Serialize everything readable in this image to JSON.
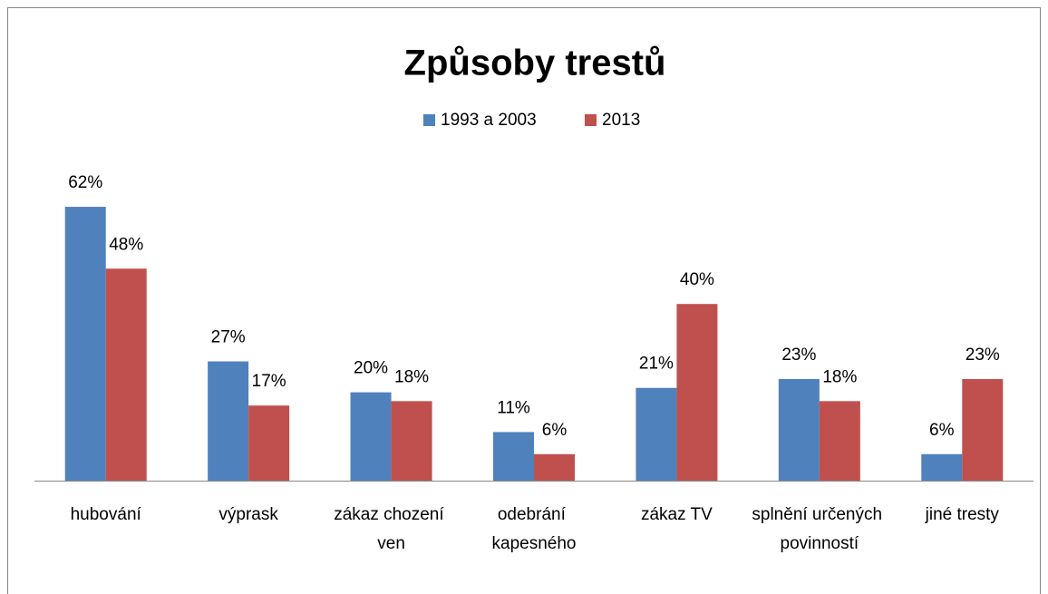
{
  "chart_data": {
    "type": "bar",
    "title": "Způsoby trestů",
    "categories": [
      "hubování",
      "výprask",
      "zákaz chození ven",
      "odebrání kapesného",
      "zákaz TV",
      "splnění určených povinností",
      "jiné tresty"
    ],
    "series": [
      {
        "name": "1993 a 2003",
        "color": "#4f81bd",
        "values": [
          62,
          27,
          20,
          11,
          21,
          23,
          6
        ],
        "value_labels": [
          "62%",
          "27%",
          "20%",
          "11%",
          "21%",
          "23%",
          "6%"
        ]
      },
      {
        "name": "2013",
        "color": "#c0504d",
        "values": [
          48,
          17,
          18,
          6,
          40,
          18,
          23
        ],
        "value_labels": [
          "48%",
          "17%",
          "18%",
          "6%",
          "40%",
          "18%",
          "23%"
        ]
      }
    ],
    "legend": "top"
  }
}
